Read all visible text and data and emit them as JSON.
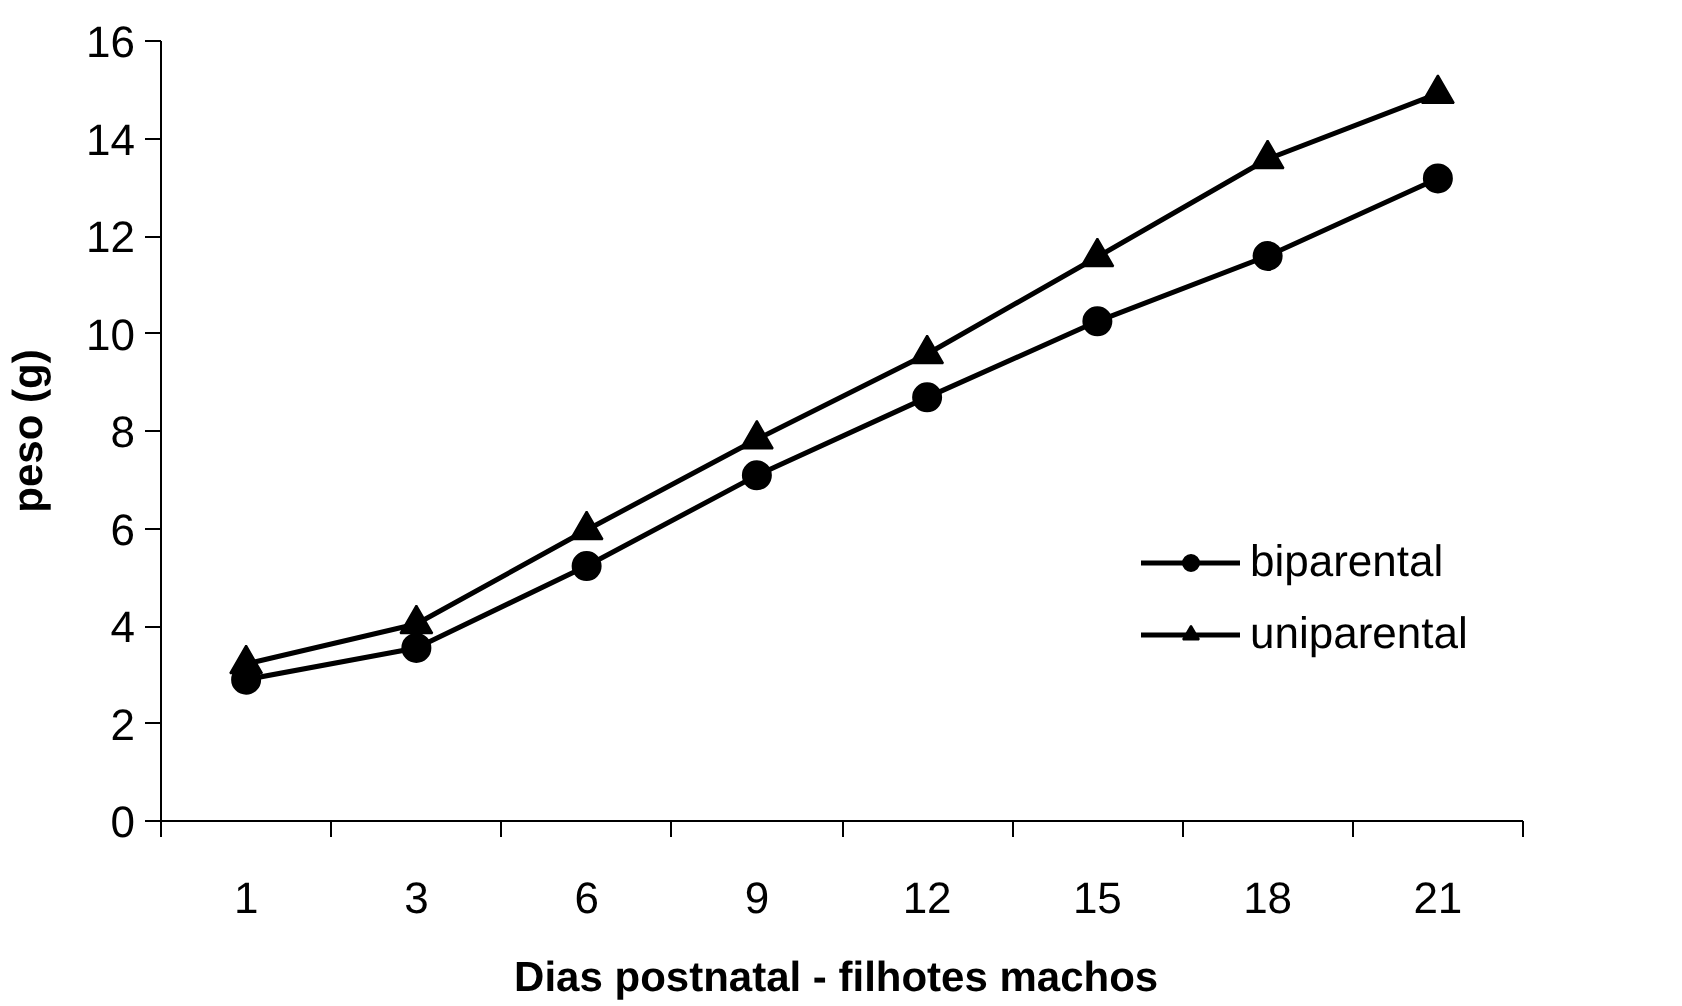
{
  "chart_data": {
    "type": "line",
    "xlabel": "Dias postnatal -  filhotes machos",
    "ylabel": "peso (g)",
    "categories": [
      "1",
      "3",
      "6",
      "9",
      "12",
      "15",
      "18",
      "21"
    ],
    "series": [
      {
        "name": "biparental",
        "color": "#000000",
        "marker": "circle",
        "values": [
          2.9,
          3.55,
          5.23,
          7.09,
          8.69,
          10.25,
          11.59,
          13.18
        ]
      },
      {
        "name": "uniparental",
        "color": "#000000",
        "marker": "triangle",
        "values": [
          3.22,
          4.04,
          5.97,
          7.83,
          9.58,
          11.57,
          13.58,
          14.92
        ]
      }
    ],
    "ylim": [
      0,
      16
    ],
    "yticks": [
      0,
      2,
      4,
      6,
      8,
      10,
      12,
      14,
      16
    ],
    "grid": false,
    "legend": "right",
    "line_style": "solid"
  }
}
